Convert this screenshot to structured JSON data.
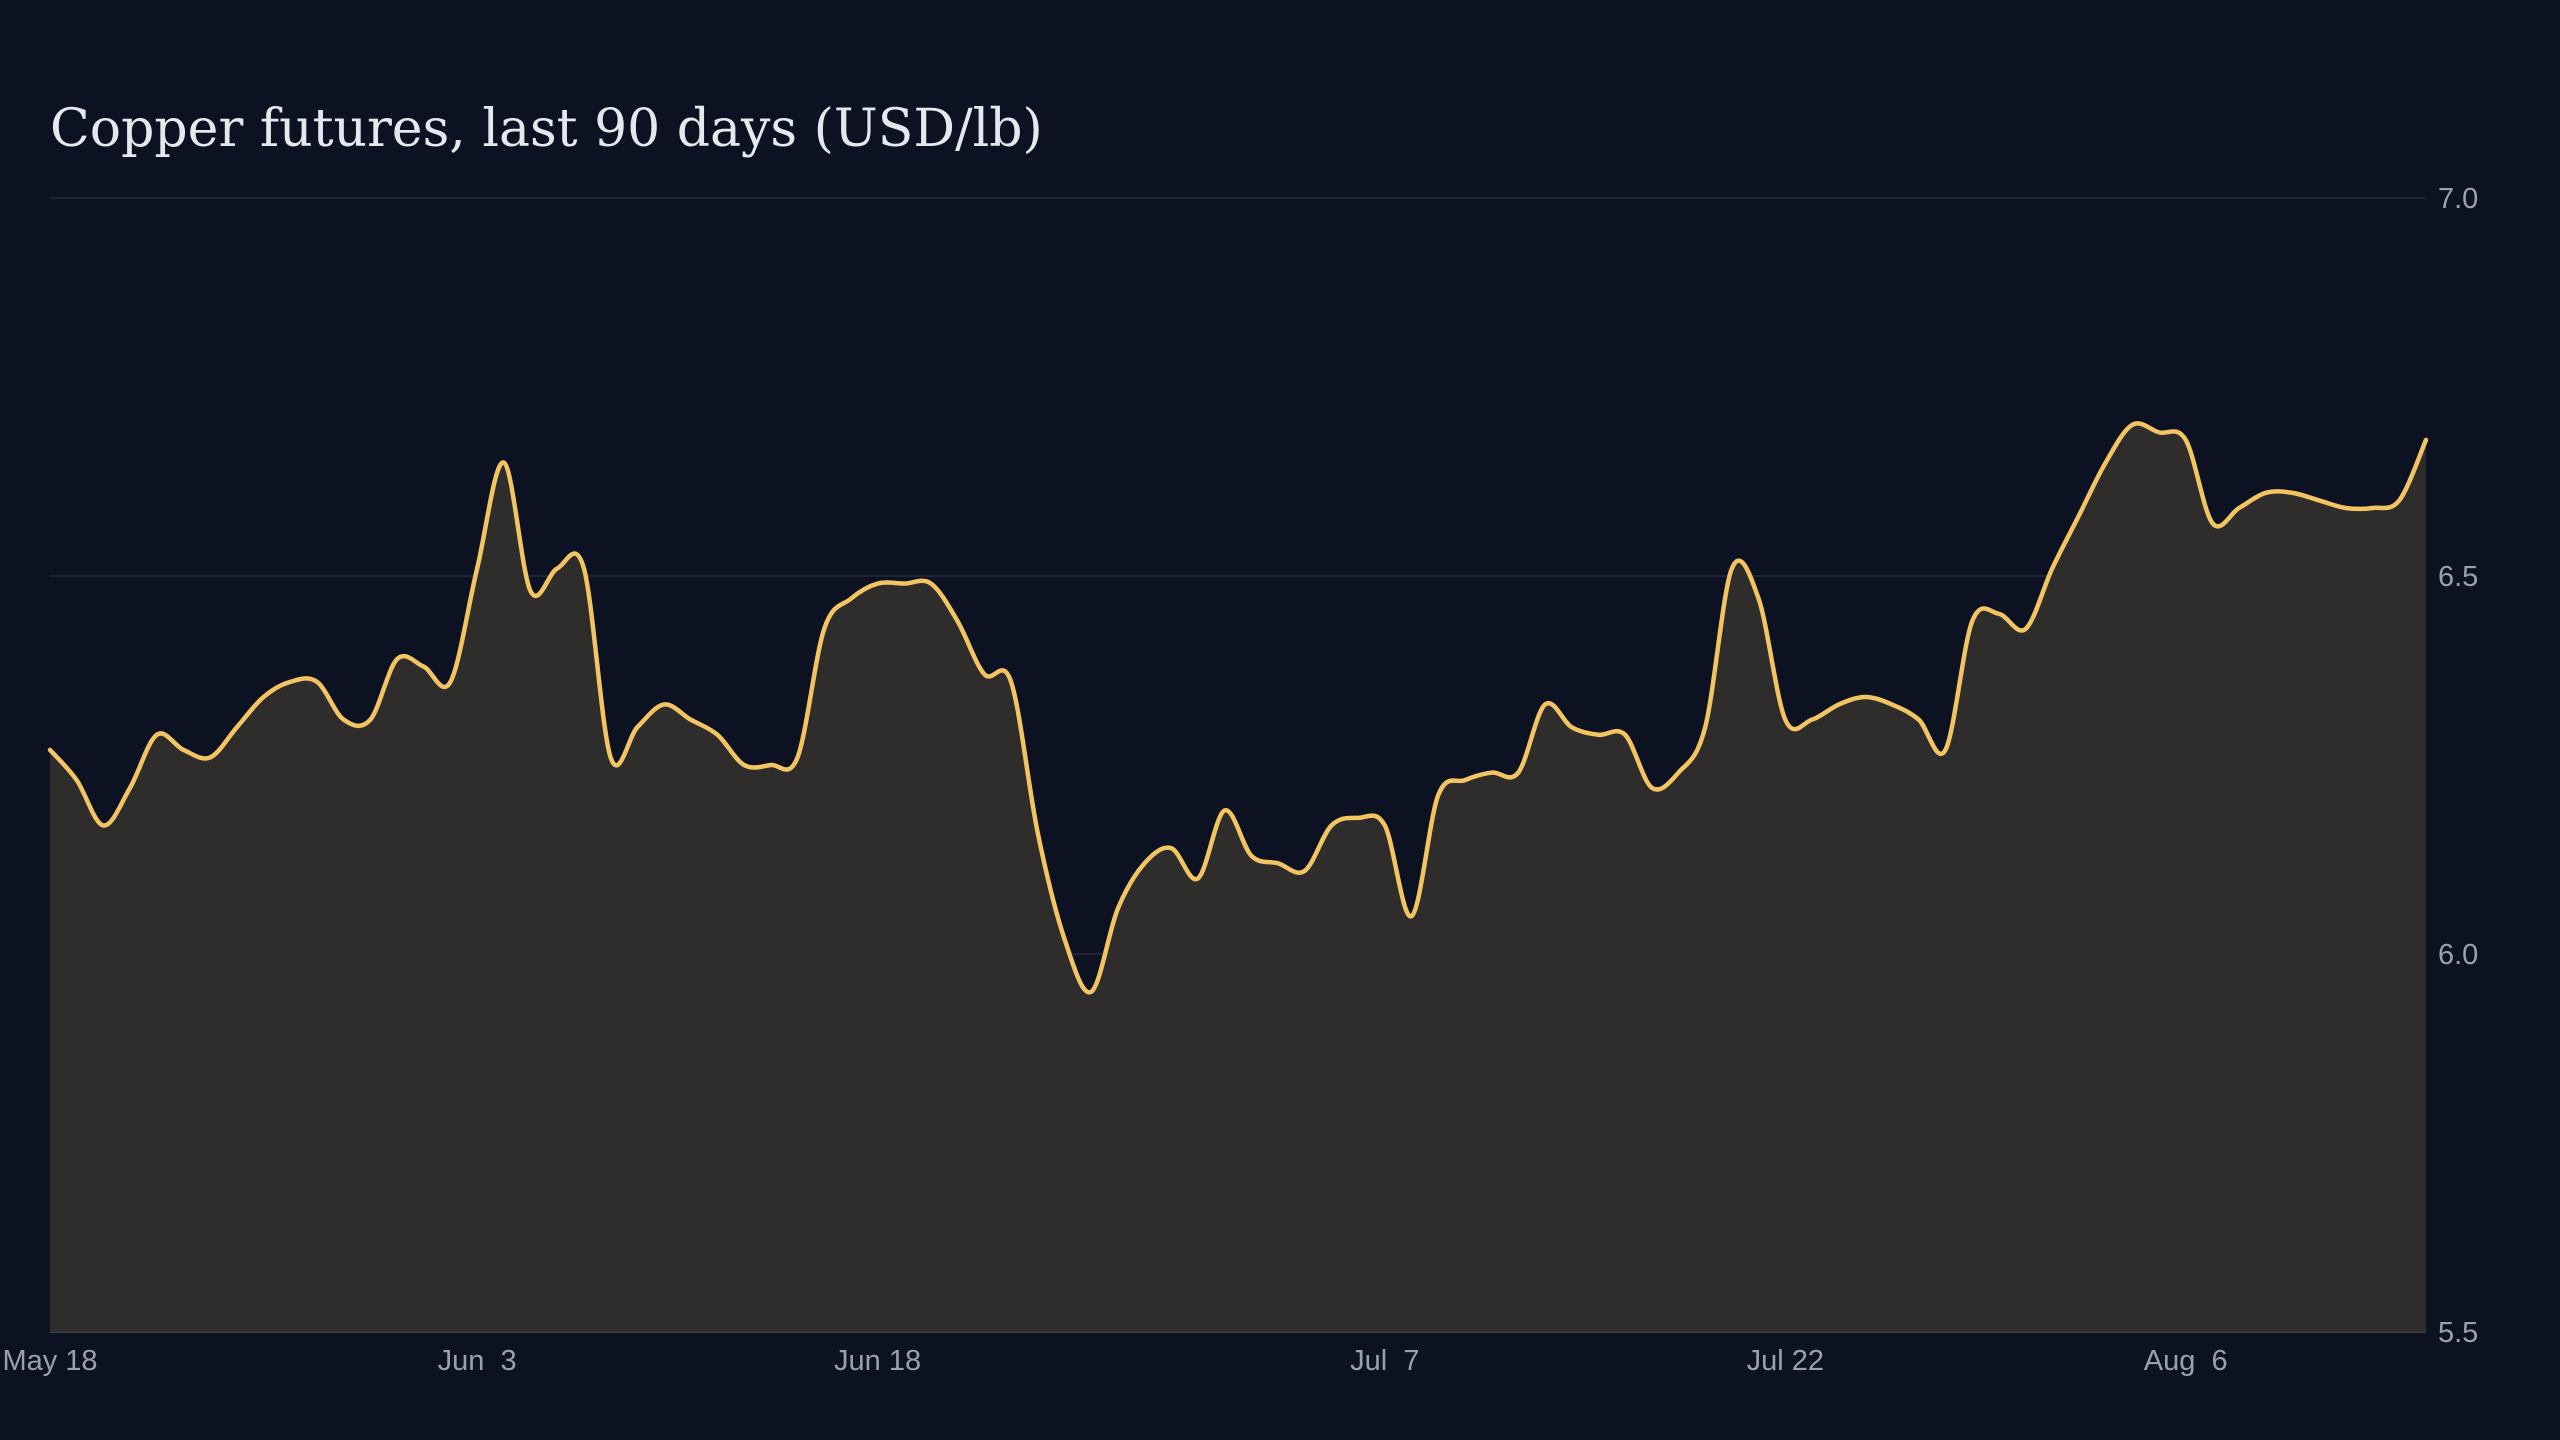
{
  "colors": {
    "background": "#0c1222",
    "line": "#f2c462",
    "area": "#2e2d2c",
    "grid": "#1f2535",
    "tick_text": "#9aa1ad",
    "title_text": "#e6e8ee"
  },
  "chart_data": {
    "type": "area",
    "title": "Copper futures, last 90 days (USD/lb)",
    "xlabel": "",
    "ylabel": "",
    "ylim": [
      5.5,
      7.0
    ],
    "y_axis_position": "right",
    "grid": true,
    "legend": "none",
    "y_ticks": [
      "7.0",
      "6.5",
      "6.0",
      "5.5"
    ],
    "x_ticks": [
      {
        "label": "May 18",
        "day": 0
      },
      {
        "label": "Jun  3",
        "day": 16
      },
      {
        "label": "Jun 18",
        "day": 31
      },
      {
        "label": "Jul  7",
        "day": 50
      },
      {
        "label": "Jul 22",
        "day": 65
      },
      {
        "label": "Aug  6",
        "day": 80
      }
    ],
    "series": [
      {
        "x": [
          "May 18",
          "May 19",
          "May 20",
          "May 21",
          "May 22",
          "May 23",
          "May 24",
          "May 25",
          "May 26",
          "May 27",
          "May 28",
          "May 29",
          "May 30",
          "May 31",
          "Jun 1",
          "Jun 2",
          "Jun 3",
          "Jun 4",
          "Jun 5",
          "Jun 6",
          "Jun 7",
          "Jun 8",
          "Jun 9",
          "Jun 10",
          "Jun 11",
          "Jun 12",
          "Jun 13",
          "Jun 14",
          "Jun 15",
          "Jun 16",
          "Jun 17",
          "Jun 18",
          "Jun 19",
          "Jun 20",
          "Jun 21",
          "Jun 22",
          "Jun 23",
          "Jun 24",
          "Jun 25",
          "Jun 26",
          "Jun 27",
          "Jun 28",
          "Jun 29",
          "Jun 30",
          "Jul 1",
          "Jul 2",
          "Jul 3",
          "Jul 4",
          "Jul 5",
          "Jul 6",
          "Jul 7",
          "Jul 8",
          "Jul 9",
          "Jul 10",
          "Jul 11",
          "Jul 12",
          "Jul 13",
          "Jul 14",
          "Jul 15",
          "Jul 16",
          "Jul 17",
          "Jul 18",
          "Jul 19",
          "Jul 20",
          "Jul 21",
          "Jul 22",
          "Jul 23",
          "Jul 24",
          "Jul 25",
          "Jul 26",
          "Jul 27",
          "Jul 28",
          "Jul 29",
          "Jul 30",
          "Jul 31",
          "Aug 1",
          "Aug 2",
          "Aug 3",
          "Aug 4",
          "Aug 5",
          "Aug 6",
          "Aug 7",
          "Aug 8",
          "Aug 9",
          "Aug 10",
          "Aug 11",
          "Aug 12",
          "Aug 13",
          "Aug 14",
          "Aug 15"
        ],
        "values": [
          6.27,
          6.23,
          6.17,
          6.22,
          6.29,
          6.27,
          6.26,
          6.3,
          6.34,
          6.36,
          6.36,
          6.31,
          6.31,
          6.39,
          6.38,
          6.36,
          6.51,
          6.65,
          6.48,
          6.51,
          6.51,
          6.26,
          6.3,
          6.33,
          6.31,
          6.29,
          6.25,
          6.25,
          6.26,
          6.43,
          6.47,
          6.49,
          6.49,
          6.49,
          6.44,
          6.37,
          6.36,
          6.16,
          6.02,
          5.95,
          6.06,
          6.12,
          6.14,
          6.1,
          6.19,
          6.13,
          6.12,
          6.11,
          6.17,
          6.18,
          6.17,
          6.05,
          6.21,
          6.23,
          6.24,
          6.24,
          6.33,
          6.3,
          6.29,
          6.29,
          6.22,
          6.24,
          6.3,
          6.51,
          6.47,
          6.31,
          6.31,
          6.33,
          6.34,
          6.33,
          6.31,
          6.27,
          6.44,
          6.45,
          6.43,
          6.51,
          6.58,
          6.65,
          6.7,
          6.69,
          6.68,
          6.57,
          6.59,
          6.61,
          6.61,
          6.6,
          6.59,
          6.59,
          6.6,
          6.68
        ]
      }
    ]
  }
}
